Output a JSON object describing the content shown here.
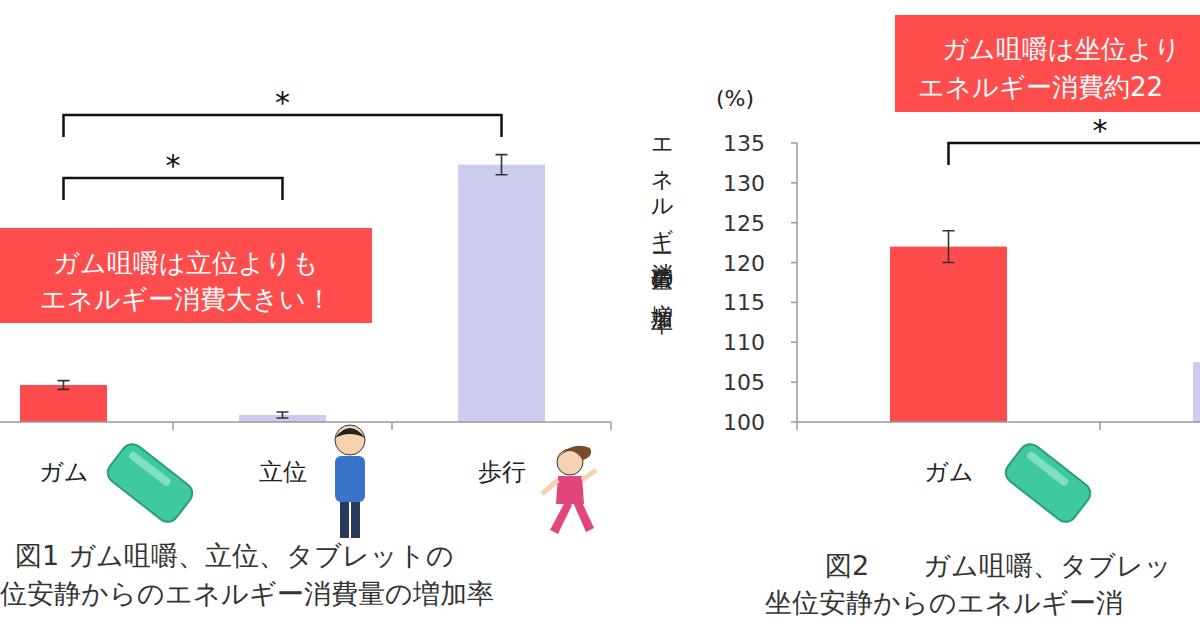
{
  "chart_data": [
    {
      "type": "bar",
      "title": "図1 ガム咀嚼、立位、タブレットの\n位安静からのエネルギー消費量の増加率",
      "callout": "ガム咀嚼は立位よりも\nエネルギー消費大きい！",
      "categories": [
        "ガム",
        "立位",
        "歩行"
      ],
      "values": [
        121,
        104,
        246
      ],
      "errors": [
        2.5,
        1.7,
        5.7
      ],
      "colors": [
        "#ff4b4b",
        "#ccccef",
        "#ccccef"
      ],
      "ylim": [
        100,
        260
      ],
      "tick_labels": "x",
      "annotations": [
        {
          "text": "*",
          "from": 0,
          "to": 2
        },
        {
          "text": "*",
          "from": 0,
          "to": 1
        }
      ]
    },
    {
      "type": "bar",
      "title": "図2　　ガム咀嚼、タブレッ\n坐位安静からのエネルギー消",
      "callout": "ガム咀嚼は坐位より\nエネルギー消費約22",
      "y_label": "エネルギー消費量の増加率",
      "y_unit": "(%)",
      "categories": [
        "ガム",
        null
      ],
      "values": [
        122,
        107.5
      ],
      "errors": [
        2,
        null
      ],
      "colors": [
        "#ff4b4b",
        "#ccccef"
      ],
      "ylim": [
        100,
        135
      ],
      "yticks": [
        100,
        105,
        110,
        115,
        120,
        125,
        130,
        135
      ],
      "annotations": [
        {
          "text": "*",
          "from": 0,
          "to": 1
        }
      ]
    }
  ]
}
